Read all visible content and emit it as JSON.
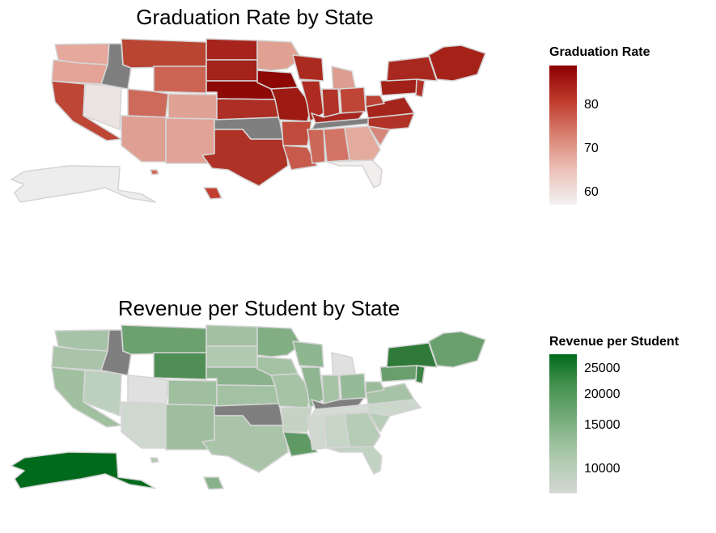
{
  "graduation": {
    "title": "Graduation Rate by State",
    "legend_title": "Graduation Rate",
    "ticks": [
      "80",
      "70",
      "60"
    ],
    "scale_min": 57,
    "scale_max": 89,
    "colors": {
      "high": "#8b0000",
      "mid": "#cd5c4f",
      "low": "#f2f2f2",
      "na": "#7f7f7f",
      "border": "#d5d5d5"
    }
  },
  "revenue": {
    "title": "Revenue per Student by State",
    "legend_title": "Revenue per Student",
    "ticks": [
      "25000",
      "20000",
      "15000",
      "10000"
    ],
    "colors": {
      "high": "#006a1c",
      "low": "#d9d9d9",
      "na": "#7f7f7f",
      "border": "#d5d5d5"
    }
  }
}
